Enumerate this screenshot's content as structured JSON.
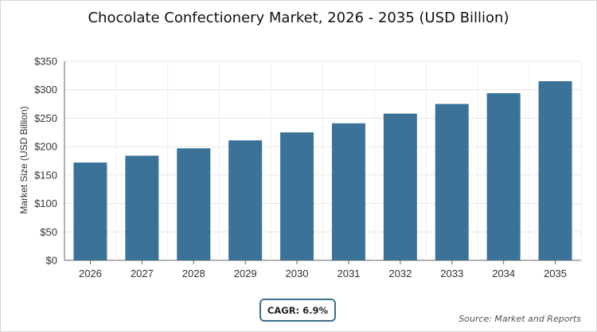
{
  "chart_data": {
    "type": "bar",
    "title": "Chocolate Confectionery Market, 2026 - 2035 (USD Billion)",
    "xlabel": "",
    "ylabel": "Market Size (USD Billion)",
    "categories": [
      "2026",
      "2027",
      "2028",
      "2029",
      "2030",
      "2031",
      "2032",
      "2033",
      "2034",
      "2035"
    ],
    "values": [
      172,
      184,
      197,
      211,
      225,
      241,
      258,
      275,
      294,
      315
    ],
    "ylim": [
      0,
      350
    ],
    "yticks": [
      0,
      50,
      100,
      150,
      200,
      250,
      300,
      350
    ],
    "ytick_labels": [
      "$0",
      "$50",
      "$100",
      "$150",
      "$200",
      "$250",
      "$300",
      "$350"
    ],
    "grid": true,
    "bar_color": "#3b7398"
  },
  "cagr_label": "CAGR: 6.9%",
  "source_label": "Source: Market and Reports"
}
